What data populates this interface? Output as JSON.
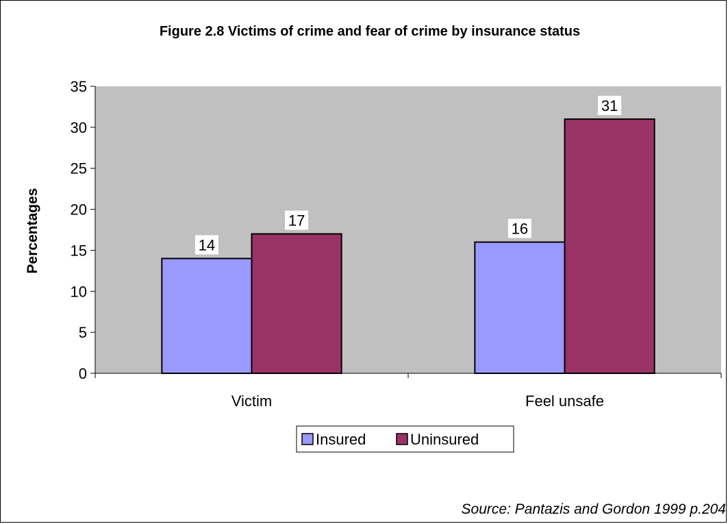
{
  "chart_data": {
    "type": "bar",
    "title": "Figure 2.8 Victims of crime and fear of crime by insurance status",
    "xlabel": "",
    "ylabel": "Percentages",
    "categories": [
      "Victim",
      "Feel unsafe"
    ],
    "series": [
      {
        "name": "Insured",
        "values": [
          14,
          16
        ],
        "color": "#9999FF"
      },
      {
        "name": "Uninsured",
        "values": [
          17,
          31
        ],
        "color": "#993366"
      }
    ],
    "ylim": [
      0,
      35
    ],
    "yticks": [
      0,
      5,
      10,
      15,
      20,
      25,
      30,
      35
    ],
    "grid": false,
    "plot_background": "#C0C0C0",
    "legend_position": "bottom",
    "data_labels": true
  },
  "source_note": "Source: Pantazis and Gordon 1999 p.204"
}
